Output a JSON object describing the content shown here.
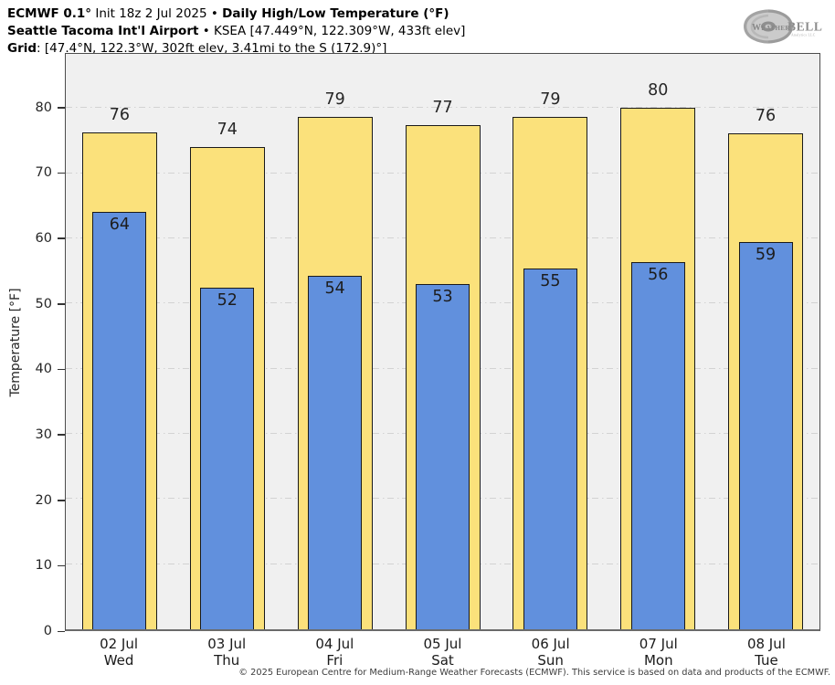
{
  "header": {
    "lines": [
      {
        "runs": [
          {
            "text": "ECMWF 0.1°",
            "bold": true
          },
          {
            "text": " Init 18z 2 Jul 2025 • ",
            "bold": false
          },
          {
            "text": "Daily High/Low Temperature (°F)",
            "bold": true
          }
        ]
      },
      {
        "runs": [
          {
            "text": "Seattle Tacoma Int'l Airport",
            "bold": true
          },
          {
            "text": " • KSEA [47.449°N, 122.309°W, 433ft elev]",
            "bold": false
          }
        ]
      },
      {
        "runs": [
          {
            "text": "Grid",
            "bold": true
          },
          {
            "text": ": [47.4°N, 122.3°W, 302ft elev, 3.41mi to the S (172.9)°]",
            "bold": false
          }
        ]
      }
    ]
  },
  "logo": {
    "brand_prefix": "Weather",
    "brand_suffix": "BELL",
    "subtitle": "Analytics LLC"
  },
  "chart_data": {
    "type": "bar",
    "title": "ECMWF 0.1° Init 18z 2 Jul 2025 • Daily High/Low Temperature (°F)",
    "subtitle": "Seattle Tacoma Int'l Airport • KSEA [47.449°N, 122.309°W, 433ft elev]",
    "xlabel": "",
    "ylabel": "Temperature [°F]",
    "ylim": [
      0,
      88.3
    ],
    "y_ticks": [
      0,
      10,
      20,
      30,
      40,
      50,
      60,
      70,
      80
    ],
    "grid": true,
    "legend": "none",
    "categories": [
      "02 Jul Wed",
      "03 Jul Thu",
      "04 Jul Fri",
      "05 Jul Sat",
      "06 Jul Sun",
      "07 Jul Mon",
      "08 Jul Tue"
    ],
    "series": [
      {
        "name": "Daily High",
        "values": [
          76,
          74,
          79,
          77,
          79,
          80,
          76
        ]
      },
      {
        "name": "Daily Low",
        "values": [
          64,
          52,
          54,
          53,
          55,
          56,
          59
        ]
      }
    ],
    "days": [
      {
        "date": "02 Jul",
        "weekday": "Wed",
        "high_label": "76",
        "low_label": "64",
        "high_value": 76.3,
        "low_value": 64.0
      },
      {
        "date": "03 Jul",
        "weekday": "Thu",
        "high_label": "74",
        "low_label": "52",
        "high_value": 74.0,
        "low_value": 52.4
      },
      {
        "date": "04 Jul",
        "weekday": "Fri",
        "high_label": "79",
        "low_label": "54",
        "high_value": 78.6,
        "low_value": 54.3
      },
      {
        "date": "05 Jul",
        "weekday": "Sat",
        "high_label": "77",
        "low_label": "53",
        "high_value": 77.4,
        "low_value": 53.0
      },
      {
        "date": "06 Jul",
        "weekday": "Sun",
        "high_label": "79",
        "low_label": "55",
        "high_value": 78.6,
        "low_value": 55.4
      },
      {
        "date": "07 Jul",
        "weekday": "Mon",
        "high_label": "80",
        "low_label": "56",
        "high_value": 80.1,
        "low_value": 56.3
      },
      {
        "date": "08 Jul",
        "weekday": "Tue",
        "high_label": "76",
        "low_label": "59",
        "high_value": 76.1,
        "low_value": 59.4
      }
    ],
    "colors": {
      "high_bar": "#fbe17b",
      "low_bar": "#6190dd",
      "bar_border": "#1a1a1a",
      "plot_bg": "#f0f0f0",
      "gridline": "#d2d2d2",
      "frame": "#4c4c4c",
      "text": "#262626"
    }
  },
  "footer": {
    "copyright": "© 2025 European Centre for Medium-Range Weather Forecasts (ECMWF). This service is based on data and products of the ECMWF."
  }
}
